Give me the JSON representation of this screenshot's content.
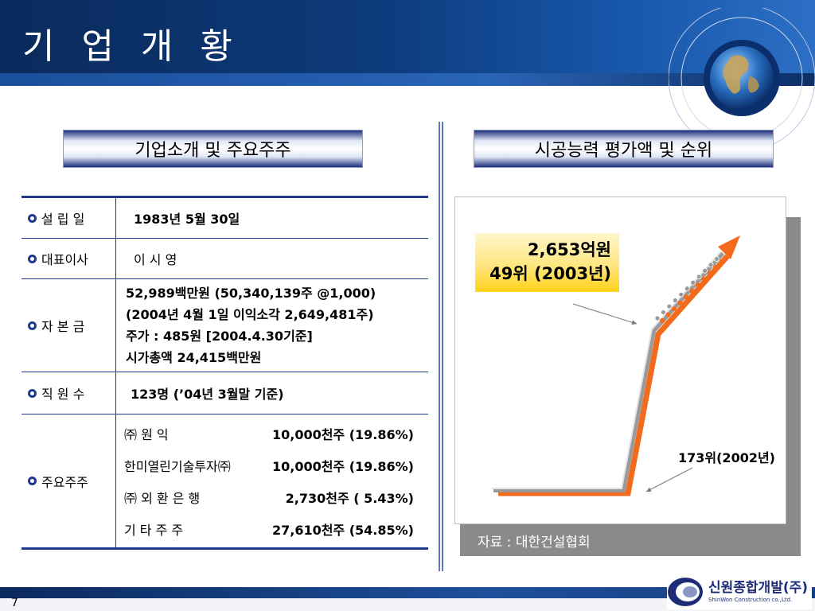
{
  "header": {
    "title": "기 업 개 황"
  },
  "sections": {
    "left_title": "기업소개 및 주요주주",
    "right_title": "시공능력 평가액 및 순위"
  },
  "company": {
    "founded_label": "설 립 일",
    "founded_value": "1983년 5월 30일",
    "ceo_label": "대표이사",
    "ceo_value": "이  시  영",
    "capital_label": "자 본 금",
    "capital_lines": [
      "52,989백만원  (50,340,139주  @1,000)",
      "(2004년 4월 1일  이익소각 2,649,481주)",
      "주가 : 485원 [2004.4.30기준]",
      " 시가총액 24,415백만원"
    ],
    "employees_label": "직 원 수",
    "employees_value": "123명 (’04년 3월말 기준)",
    "shareholders_label": "주요주주",
    "shareholders": [
      {
        "name": "㈜  원    익",
        "value": "10,000천주 (19.86%)"
      },
      {
        "name": "한미열린기술투자㈜",
        "value": "10,000천주 (19.86%)"
      },
      {
        "name": "㈜  외 환 은 행",
        "value": "2,730천주 (  5.43%)"
      },
      {
        "name": "기 타 주 주",
        "value": "27,610천주 (54.85%)"
      }
    ]
  },
  "chart_data": {
    "type": "line",
    "x": [
      "2002",
      "2003"
    ],
    "series": [
      {
        "name": "",
        "values": [
          173,
          49
        ]
      }
    ],
    "annotations": [
      {
        "line1": "2,653억원",
        "line2": "49위 (2003년)"
      },
      {
        "text": "173위(2002년)"
      }
    ],
    "source": "자료 : 대한건설협회"
  },
  "footer": {
    "page_number": "7",
    "logo_main": "신원종합개발(주)",
    "logo_sub": "ShinWon Construction co.,Ltd."
  },
  "colors": {
    "navy": "#1f3a8c",
    "orange": "#f26a1b",
    "callout_yellow": "#ffd21a"
  }
}
